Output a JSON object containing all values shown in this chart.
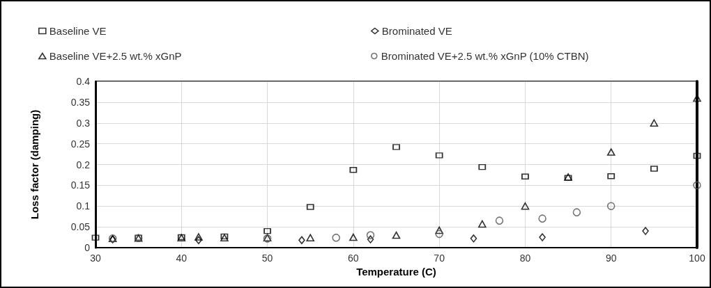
{
  "chart_data": {
    "type": "scatter",
    "xlabel": "Temperature (C)",
    "ylabel": "Loss factor (damping)",
    "xlim": [
      30,
      100
    ],
    "xticks": [
      30,
      40,
      50,
      60,
      70,
      80,
      90,
      100
    ],
    "ylim": [
      0,
      0.4
    ],
    "yticks": [
      0,
      0.05,
      0.1,
      0.15,
      0.2,
      0.25,
      0.3,
      0.35,
      0.4
    ],
    "grid": true,
    "legend": "top",
    "series": [
      {
        "name": "Baseline VE",
        "color": "#000000",
        "marker": "square",
        "x": [
          30,
          35,
          40,
          45,
          50,
          55,
          60,
          65,
          70,
          75,
          80,
          85,
          90,
          95,
          100
        ],
        "values": [
          0.024,
          0.024,
          0.025,
          0.027,
          0.04,
          0.098,
          0.187,
          0.242,
          0.222,
          0.194,
          0.171,
          0.168,
          0.172,
          0.19,
          0.221
        ]
      },
      {
        "name": "Brominated VE",
        "color": "#000000",
        "marker": "diamond",
        "x": [
          32,
          42,
          54,
          62,
          74,
          82,
          94
        ],
        "values": [
          0.02,
          0.018,
          0.018,
          0.02,
          0.022,
          0.025,
          0.04
        ]
      },
      {
        "name": "Baseline VE+2.5 wt.% xGnP",
        "color": "#000000",
        "marker": "triangle",
        "x": [
          32,
          35,
          40,
          42,
          45,
          50,
          55,
          60,
          65,
          70,
          75,
          80,
          85,
          90,
          95,
          100
        ],
        "values": [
          0.022,
          0.023,
          0.024,
          0.026,
          0.024,
          0.024,
          0.024,
          0.025,
          0.03,
          0.042,
          0.057,
          0.1,
          0.17,
          0.23,
          0.3,
          0.36
        ]
      },
      {
        "name": "Brominated VE+2.5 wt.% xGnP (10% CTBN)",
        "color": "#555555",
        "marker": "circle",
        "x": [
          32,
          35,
          50,
          58,
          62,
          70,
          77,
          82,
          86,
          90,
          100
        ],
        "values": [
          0.022,
          0.023,
          0.022,
          0.024,
          0.03,
          0.033,
          0.065,
          0.07,
          0.085,
          0.1,
          0.15
        ]
      }
    ]
  }
}
